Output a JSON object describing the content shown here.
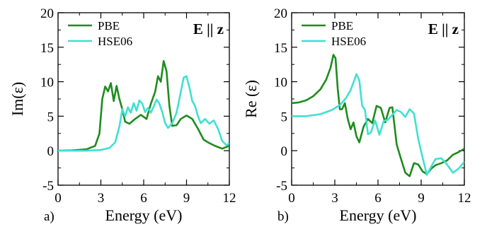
{
  "colors": {
    "PBE": "#1e8c1e",
    "HSE06": "#40e0d0"
  },
  "chart_data": [
    {
      "type": "line",
      "panel_label": "a)",
      "xlabel": "Energy (eV)",
      "ylabel": "Im(ε)",
      "annotation": "E || z",
      "xlim": [
        0,
        12
      ],
      "ylim": [
        -5,
        20
      ],
      "xticks": [
        0,
        3,
        6,
        9,
        12
      ],
      "yticks": [
        -5,
        0,
        5,
        10,
        15,
        20
      ],
      "legend_position": "top-left",
      "series": [
        {
          "name": "PBE",
          "x": [
            0,
            1.0,
            2.0,
            2.6,
            2.9,
            3.1,
            3.3,
            3.5,
            3.7,
            3.9,
            4.1,
            4.3,
            4.5,
            4.7,
            5.0,
            5.4,
            5.8,
            6.2,
            6.5,
            6.8,
            7.0,
            7.2,
            7.4,
            7.6,
            7.8,
            8.0,
            8.3,
            8.6,
            9.0,
            9.4,
            9.8,
            10.2,
            10.6,
            11.0,
            11.5,
            12.0
          ],
          "y": [
            0,
            0.05,
            0.2,
            0.7,
            2.5,
            7.5,
            9.3,
            8.6,
            9.8,
            7.2,
            9.4,
            7.5,
            6.0,
            4.2,
            3.9,
            4.6,
            5.2,
            4.6,
            6.8,
            8.5,
            10.8,
            10.0,
            13.0,
            11.5,
            6.5,
            3.6,
            3.7,
            4.6,
            5.1,
            4.6,
            3.2,
            1.6,
            1.1,
            0.7,
            0.3,
            0.7
          ]
        },
        {
          "name": "HSE06",
          "x": [
            0,
            2.0,
            3.0,
            3.6,
            4.0,
            4.3,
            4.5,
            4.7,
            4.9,
            5.1,
            5.3,
            5.5,
            5.7,
            5.9,
            6.1,
            6.3,
            6.5,
            6.7,
            6.9,
            7.1,
            7.3,
            7.5,
            7.7,
            8.0,
            8.3,
            8.6,
            8.8,
            9.0,
            9.2,
            9.4,
            9.6,
            9.8,
            10.0,
            10.3,
            10.6,
            10.9,
            11.2,
            11.5,
            11.8,
            12.0
          ],
          "y": [
            0,
            0.0,
            0.1,
            0.4,
            1.2,
            3.5,
            6.0,
            5.0,
            6.3,
            5.5,
            6.9,
            5.8,
            7.3,
            6.8,
            5.6,
            6.2,
            5.5,
            6.4,
            7.4,
            6.8,
            5.6,
            4.0,
            3.3,
            4.0,
            5.5,
            8.5,
            10.6,
            10.8,
            9.2,
            7.2,
            6.5,
            5.0,
            4.0,
            4.6,
            3.9,
            4.4,
            3.2,
            1.4,
            0.8,
            1.1
          ]
        }
      ]
    },
    {
      "type": "line",
      "panel_label": "b)",
      "xlabel": "Energy (eV)",
      "ylabel": "Re (ε)",
      "annotation": "E || z",
      "xlim": [
        0,
        12
      ],
      "ylim": [
        -5,
        20
      ],
      "xticks": [
        0,
        3,
        6,
        9,
        12
      ],
      "yticks": [
        -5,
        0,
        5,
        10,
        15,
        20
      ],
      "legend_position": "top-left",
      "series": [
        {
          "name": "PBE",
          "x": [
            0,
            0.5,
            1.0,
            1.5,
            2.0,
            2.4,
            2.7,
            2.9,
            3.05,
            3.2,
            3.35,
            3.5,
            3.7,
            3.9,
            4.1,
            4.3,
            4.5,
            4.7,
            5.0,
            5.3,
            5.6,
            5.9,
            6.2,
            6.5,
            6.8,
            7.0,
            7.3,
            7.6,
            7.9,
            8.2,
            8.5,
            8.8,
            9.1,
            9.4,
            9.7,
            10.0,
            10.4,
            10.8,
            11.2,
            11.6,
            12.0
          ],
          "y": [
            6.9,
            7.0,
            7.3,
            7.9,
            8.9,
            10.3,
            12.0,
            13.9,
            13.4,
            9.0,
            6.0,
            6.0,
            6.9,
            4.6,
            3.1,
            4.1,
            2.1,
            1.2,
            3.5,
            4.6,
            4.0,
            6.5,
            6.2,
            4.1,
            6.2,
            6.3,
            0.9,
            -1.2,
            -3.2,
            -3.7,
            -1.8,
            -2.0,
            -3.0,
            -3.4,
            -2.6,
            -2.1,
            -1.8,
            -1.4,
            -0.6,
            -0.2,
            0.3
          ]
        },
        {
          "name": "HSE06",
          "x": [
            0,
            1.0,
            2.0,
            2.8,
            3.4,
            3.8,
            4.1,
            4.3,
            4.5,
            4.7,
            4.9,
            5.1,
            5.3,
            5.5,
            5.8,
            6.1,
            6.4,
            6.7,
            7.0,
            7.3,
            7.6,
            7.9,
            8.2,
            8.5,
            8.8,
            9.1,
            9.4,
            9.7,
            10.0,
            10.4,
            10.8,
            11.2,
            11.6,
            12.0
          ],
          "y": [
            5.0,
            5.0,
            5.3,
            5.9,
            6.7,
            7.7,
            8.8,
            9.9,
            11.1,
            10.2,
            6.5,
            5.9,
            2.4,
            2.6,
            4.4,
            2.3,
            4.3,
            4.5,
            5.2,
            5.9,
            5.6,
            4.9,
            6.0,
            5.4,
            1.7,
            -1.0,
            -3.5,
            -2.3,
            -1.2,
            -1.1,
            -2.0,
            -3.2,
            -2.6,
            -1.6
          ]
        }
      ]
    }
  ]
}
